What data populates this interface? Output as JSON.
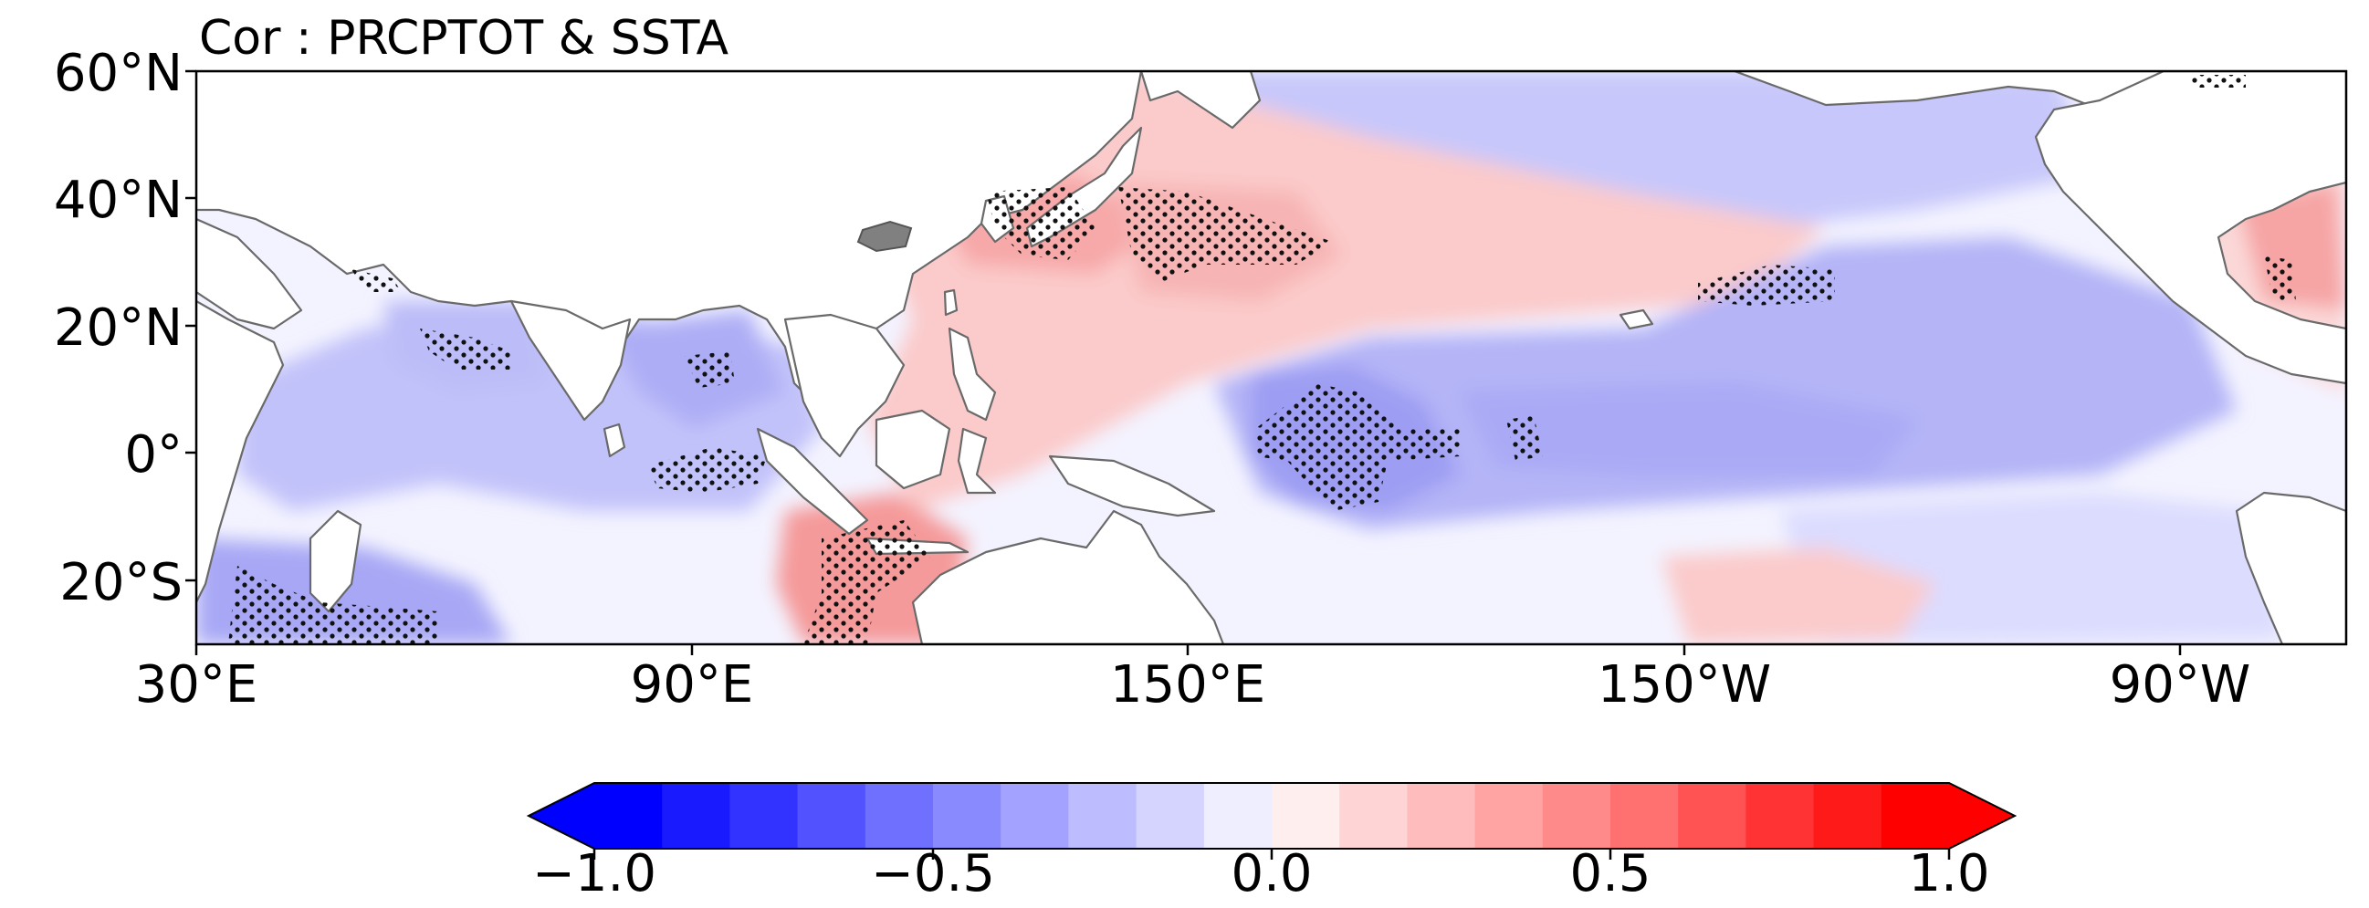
{
  "map": {
    "title": "Cor : PRCPTOT & SSTA",
    "lat_ticks": [
      "60°N",
      "40°N",
      "20°N",
      "0°",
      "20°S"
    ],
    "lon_ticks": [
      "30°E",
      "90°E",
      "150°E",
      "150°W",
      "90°W"
    ],
    "lat_range": [
      -30,
      60
    ],
    "lon_range": [
      30,
      290
    ],
    "stippling": "significant correlation",
    "colors": {
      "positive": "#ff2020",
      "negative": "#2020ff",
      "land": "#ffffff",
      "coastline": "#555555",
      "masked_land": "#808080"
    }
  },
  "colorbar": {
    "ticks": [
      "−1.0",
      "−0.5",
      "0.0",
      "0.5",
      "1.0"
    ],
    "range": [
      -1.0,
      1.0
    ],
    "step": 0.1,
    "extend": "both",
    "colors": [
      "#0000ff",
      "#1a1aff",
      "#3333ff",
      "#5252ff",
      "#7070ff",
      "#8a8aff",
      "#a3a3ff",
      "#bcbcff",
      "#d4d4ff",
      "#eeeeff",
      "#ffeeee",
      "#ffd4d4",
      "#ffbcbc",
      "#ffa3a3",
      "#ff8a8a",
      "#ff7070",
      "#ff5252",
      "#ff3333",
      "#ff1a1a",
      "#ff0000"
    ]
  }
}
